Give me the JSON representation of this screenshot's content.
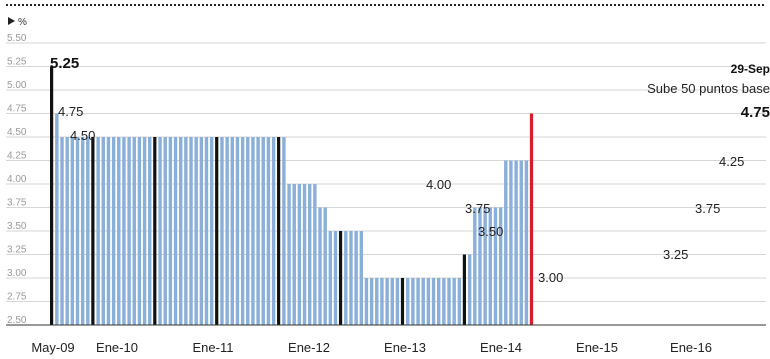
{
  "chart_data": {
    "type": "bar",
    "title": "",
    "unit_label": "%",
    "ylim": [
      2.5,
      5.5
    ],
    "yticks": [
      "5.50",
      "5.25",
      "5.00",
      "4.75",
      "4.50",
      "4.25",
      "4.00",
      "3.75",
      "3.50",
      "3.25",
      "3.00",
      "2.75",
      "2.50"
    ],
    "x_tick_labels": [
      "May-09",
      "Ene-10",
      "Ene-11",
      "Ene-12",
      "Ene-13",
      "Ene-14",
      "Ene-15",
      "Ene-16"
    ],
    "segments": [
      {
        "value": 5.25,
        "count": 1
      },
      {
        "value": 4.75,
        "count": 1
      },
      {
        "value": 4.5,
        "count": 44
      },
      {
        "value": 4.0,
        "count": 6
      },
      {
        "value": 3.75,
        "count": 2
      },
      {
        "value": 3.5,
        "count": 7
      },
      {
        "value": 3.0,
        "count": 19
      },
      {
        "value": 3.25,
        "count": 2
      },
      {
        "value": 3.75,
        "count": 6
      },
      {
        "value": 4.25,
        "count": 5
      },
      {
        "value": 4.75,
        "count": 1
      }
    ],
    "highlight_bars": [
      0,
      8,
      20,
      32,
      44,
      56,
      68,
      80
    ],
    "last_bar_color": "#d81e2c",
    "bar_color": "#8aafd8",
    "highlight_color": "#111111",
    "data_labels": [
      {
        "text": "5.25",
        "bar": 0,
        "value": 5.25,
        "bold": true
      },
      {
        "text": "4.75",
        "bar": 1,
        "value": 4.75
      },
      {
        "text": "4.50",
        "bar": 2,
        "value": 4.5
      },
      {
        "text": "4.00",
        "bar": 46,
        "value": 4.0
      },
      {
        "text": "3.75",
        "bar": 52,
        "value": 3.75
      },
      {
        "text": "3.50",
        "bar": 54,
        "value": 3.5
      },
      {
        "text": "3.00",
        "bar": 61,
        "value": 3.0
      },
      {
        "text": "3.25",
        "bar": 80,
        "value": 3.25
      },
      {
        "text": "3.75",
        "bar": 82,
        "value": 3.75
      },
      {
        "text": "4.25",
        "bar": 88,
        "value": 4.25
      },
      {
        "text": "4.75",
        "bar": 93,
        "value": 4.75,
        "bold": true
      }
    ],
    "annotation": {
      "date": "29-Sep",
      "text": "Sube 50 puntos base"
    }
  }
}
